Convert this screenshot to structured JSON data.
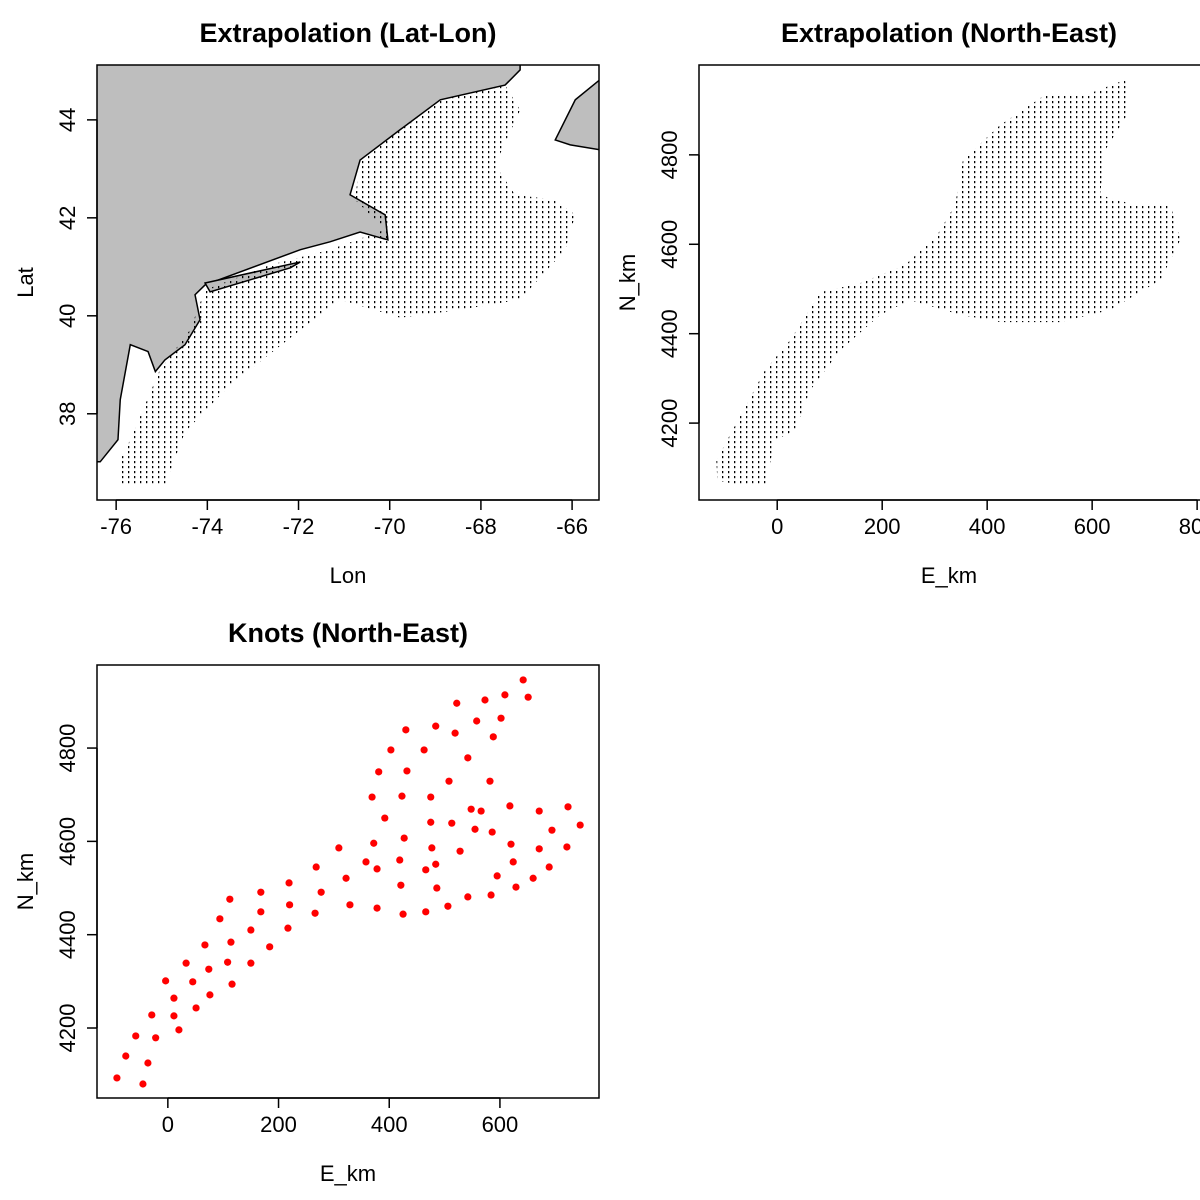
{
  "chart_data": [
    {
      "type": "map",
      "title": "Extrapolation (Lat-Lon)",
      "xlabel": "Lon",
      "ylabel": "Lat",
      "xlim": [
        -76.42,
        -65.41
      ],
      "ylim": [
        36.24,
        45.12
      ],
      "xticks": [
        -76,
        -74,
        -72,
        -70,
        -68,
        -66
      ],
      "yticks": [
        38,
        40,
        42,
        44
      ],
      "land_color": "#bebebe",
      "point_color": "#000000",
      "land": [
        {
          "x": [
            -76.57,
            -67.14,
            -67.14,
            -67.47,
            -68.89,
            -69.77,
            -70.65,
            -70.87,
            -70.1,
            -70.04,
            -70.65,
            -71.31,
            -71.96,
            -74.05,
            -74.27,
            -74.16,
            -74.49,
            -74.93,
            -75.14,
            -75.3,
            -75.69,
            -75.91,
            -75.96,
            -76.35,
            -76.57
          ],
          "y": [
            45.22,
            45.22,
            45.02,
            44.71,
            44.41,
            43.8,
            43.18,
            42.47,
            42.06,
            41.55,
            41.71,
            41.51,
            41.35,
            40.63,
            40.43,
            39.92,
            39.41,
            39.1,
            38.86,
            39.27,
            39.41,
            38.29,
            37.47,
            37.02,
            37.02
          ]
        },
        {
          "x": [
            -74.05,
            -71.96,
            -72.18,
            -73.94
          ],
          "y": [
            40.67,
            41.1,
            40.98,
            40.49
          ]
        },
        {
          "x": [
            -66.37,
            -65.93,
            -65.39,
            -65.39,
            -66.04
          ],
          "y": [
            43.59,
            44.41,
            44.82,
            43.39,
            43.49
          ]
        }
      ],
      "region": {
        "x": [
          -75.96,
          -74.93,
          -74.49,
          -73.5,
          -71.96,
          -71.09,
          -69.77,
          -68.46,
          -67.14,
          -66.15,
          -65.93,
          -66.37,
          -67.25,
          -67.69,
          -67.14,
          -67.47,
          -68.89,
          -69.77,
          -70.65,
          -70.76,
          -70.1,
          -71.31,
          -72.62,
          -74.05,
          -74.38,
          -75.04,
          -75.69,
          -75.96
        ],
        "y": [
          36.55,
          36.55,
          37.63,
          38.59,
          39.71,
          40.33,
          39.96,
          40.12,
          40.33,
          41.35,
          42.06,
          42.37,
          42.47,
          43.08,
          44.2,
          44.71,
          44.41,
          43.8,
          43.18,
          42.37,
          41.76,
          41.35,
          41.04,
          40.53,
          39.71,
          38.9,
          37.47,
          36.96
        ]
      }
    },
    {
      "type": "area",
      "title": "Extrapolation (North-East)",
      "xlabel": "E_km",
      "ylabel": "N_km",
      "xlim": [
        -149,
        815
      ],
      "ylim": [
        4028,
        5001
      ],
      "xticks": [
        0,
        200,
        400,
        600,
        800
      ],
      "yticks": [
        4200,
        4400,
        4600,
        4800
      ],
      "point_color": "#000000",
      "region": {
        "x": [
          -114,
          -116,
          -23,
          25,
          82,
          158,
          244,
          305,
          339,
          354,
          425,
          510,
          587,
          663,
          667,
          625,
          615,
          682,
          749,
          768,
          730,
          634,
          539,
          425,
          349,
          253,
          196,
          120,
          63,
          34,
          -4,
          -23,
          -70
        ],
        "y": [
          4072,
          4117,
          4319,
          4386,
          4493,
          4513,
          4554,
          4621,
          4688,
          4789,
          4867,
          4934,
          4934,
          4968,
          4890,
          4811,
          4710,
          4688,
          4688,
          4610,
          4520,
          4453,
          4426,
          4426,
          4442,
          4475,
          4442,
          4363,
          4274,
          4184,
          4162,
          4061,
          4061
        ]
      }
    },
    {
      "type": "scatter",
      "title": "Knots (North-East)",
      "xlabel": "E_km",
      "ylabel": "N_km",
      "xlim": [
        -128,
        779
      ],
      "ylim": [
        4050,
        4978
      ],
      "xticks": [
        0,
        200,
        400,
        600
      ],
      "yticks": [
        4200,
        4400,
        4600,
        4800
      ],
      "color": "#ff0000",
      "x": [
        -92,
        -45,
        -76,
        -36,
        -58,
        -22,
        -29,
        20,
        11,
        11,
        -4,
        51,
        45,
        33,
        76,
        74,
        67,
        116,
        108,
        114,
        94,
        112,
        150,
        150,
        184,
        168,
        168,
        217,
        220,
        219,
        266,
        277,
        268,
        329,
        322,
        309,
        378,
        358,
        372,
        378,
        369,
        381,
        403,
        392,
        425,
        421,
        419,
        427,
        423,
        432,
        430,
        466,
        466,
        477,
        475,
        475,
        463,
        484,
        506,
        486,
        484,
        513,
        508,
        519,
        522,
        542,
        528,
        542,
        558,
        584,
        555,
        548,
        582,
        573,
        595,
        586,
        566,
        588,
        602,
        609,
        629,
        624,
        620,
        618,
        642,
        651,
        660,
        671,
        671,
        689,
        694,
        723,
        721,
        745
      ],
      "y": [
        4093,
        4080,
        4140,
        4125,
        4183,
        4179,
        4228,
        4196,
        4226,
        4264,
        4301,
        4243,
        4299,
        4339,
        4271,
        4326,
        4378,
        4294,
        4341,
        4384,
        4434,
        4476,
        4339,
        4410,
        4374,
        4449,
        4491,
        4414,
        4464,
        4511,
        4446,
        4491,
        4545,
        4464,
        4521,
        4586,
        4457,
        4556,
        4596,
        4541,
        4695,
        4749,
        4796,
        4650,
        4444,
        4506,
        4560,
        4607,
        4697,
        4751,
        4839,
        4449,
        4539,
        4586,
        4641,
        4695,
        4796,
        4847,
        4461,
        4500,
        4551,
        4639,
        4729,
        4832,
        4896,
        4481,
        4579,
        4779,
        4858,
        4485,
        4626,
        4669,
        4729,
        4903,
        4526,
        4620,
        4665,
        4824,
        4864,
        4914,
        4502,
        4556,
        4594,
        4676,
        4946,
        4909,
        4521,
        4584,
        4665,
        4545,
        4624,
        4674,
        4588,
        4635
      ]
    }
  ]
}
